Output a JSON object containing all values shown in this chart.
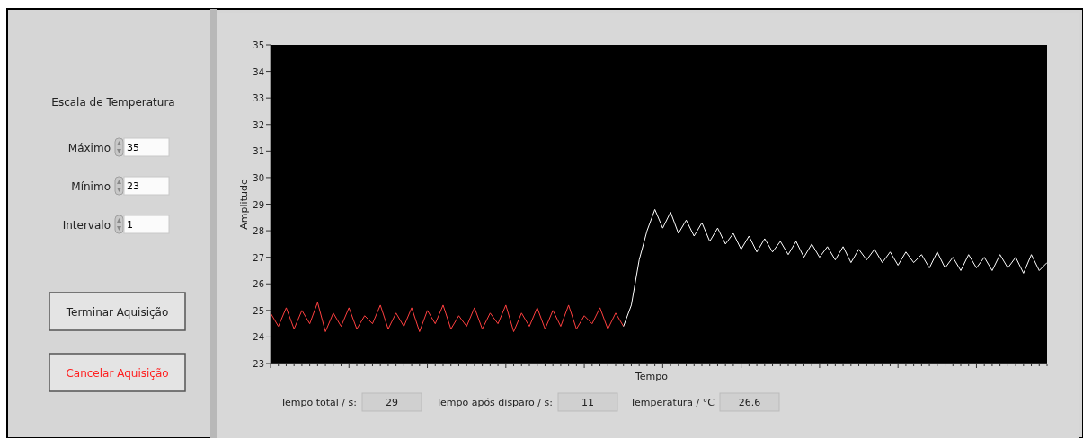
{
  "chart_data": [
    {
      "type": "other",
      "title": "Escala de Temperatura",
      "annotations": [
        "Máximo",
        "35",
        "Mínimo",
        "23",
        "Intervalo",
        "1",
        "Terminar Aquisição",
        "Cancelar Aquisição"
      ]
    },
    {
      "type": "line",
      "xlabel": "Tempo",
      "ylabel": "Amplitude",
      "ylim": [
        23,
        35
      ],
      "yticks": [
        23,
        24,
        25,
        26,
        27,
        28,
        29,
        30,
        31,
        32,
        33,
        34,
        35
      ],
      "grid": false,
      "marker": "none",
      "line_style": "solid",
      "categories": [
        null,
        null,
        null,
        null,
        null,
        null,
        null,
        null,
        null,
        null,
        null,
        null,
        null,
        null,
        null,
        null,
        null,
        null,
        null,
        null,
        null,
        null,
        null,
        null,
        null,
        null,
        null,
        null,
        null,
        null,
        null,
        null,
        null,
        null,
        null,
        null,
        null,
        null,
        null,
        null,
        null,
        null,
        null,
        null,
        null,
        null,
        null,
        null,
        null,
        null,
        null,
        null,
        null,
        null,
        null,
        null,
        null,
        null,
        null,
        null,
        null,
        null,
        null,
        null,
        null,
        null,
        null,
        null,
        null,
        null,
        null,
        null,
        null,
        null,
        null,
        null,
        null,
        null,
        null,
        null,
        null,
        null,
        null,
        null,
        null,
        null,
        null,
        null,
        null,
        null,
        null,
        null,
        null,
        null,
        null,
        null,
        null,
        null,
        null,
        null
      ],
      "series": [
        {
          "color": "#ff4040",
          "values": [
            24.9,
            24.4,
            25.1,
            24.3,
            25.0,
            24.5,
            25.3,
            24.2,
            24.9,
            24.4,
            25.1,
            24.3,
            24.8,
            24.5,
            25.2,
            24.3,
            24.9,
            24.4,
            25.1,
            24.2,
            25.0,
            24.5,
            25.2,
            24.3,
            24.8,
            24.4,
            25.1,
            24.3,
            24.9,
            24.5,
            25.2,
            24.2,
            24.9,
            24.4,
            25.1,
            24.3,
            25.0,
            24.4,
            25.2,
            24.3,
            24.8,
            24.5,
            25.1,
            24.3,
            24.9,
            24.4,
            null,
            null,
            null,
            null,
            null,
            null,
            null,
            null,
            null,
            null,
            null,
            null,
            null,
            null,
            null,
            null,
            null,
            null,
            null,
            null,
            null,
            null,
            null,
            null,
            null,
            null,
            null,
            null,
            null,
            null,
            null,
            null,
            null,
            null,
            null,
            null,
            null,
            null,
            null,
            null,
            null,
            null,
            null,
            null,
            null,
            null,
            null,
            null,
            null,
            null,
            null,
            null,
            null,
            null
          ]
        },
        {
          "color": "#ffffff",
          "values": [
            null,
            null,
            null,
            null,
            null,
            null,
            null,
            null,
            null,
            null,
            null,
            null,
            null,
            null,
            null,
            null,
            null,
            null,
            null,
            null,
            null,
            null,
            null,
            null,
            null,
            null,
            null,
            null,
            null,
            null,
            null,
            null,
            null,
            null,
            null,
            null,
            null,
            null,
            null,
            null,
            null,
            null,
            null,
            null,
            null,
            24.4,
            25.2,
            26.9,
            28.0,
            28.8,
            28.1,
            28.7,
            27.9,
            28.4,
            27.8,
            28.3,
            27.6,
            28.1,
            27.5,
            27.9,
            27.3,
            27.8,
            27.2,
            27.7,
            27.2,
            27.6,
            27.1,
            27.6,
            27.0,
            27.5,
            27.0,
            27.4,
            26.9,
            27.4,
            26.8,
            27.3,
            26.9,
            27.3,
            26.8,
            27.2,
            26.7,
            27.2,
            26.8,
            27.1,
            26.6,
            27.2,
            26.6,
            27.0,
            26.5,
            27.1,
            26.6,
            27.0,
            26.5,
            27.1,
            26.6,
            27.0,
            26.4,
            27.1,
            26.5,
            26.8
          ]
        }
      ],
      "annotations": [
        "Tempo total / s:",
        "29",
        "Tempo após disparo / s:",
        "11",
        "Temperatura / °C",
        "26.6"
      ]
    }
  ]
}
